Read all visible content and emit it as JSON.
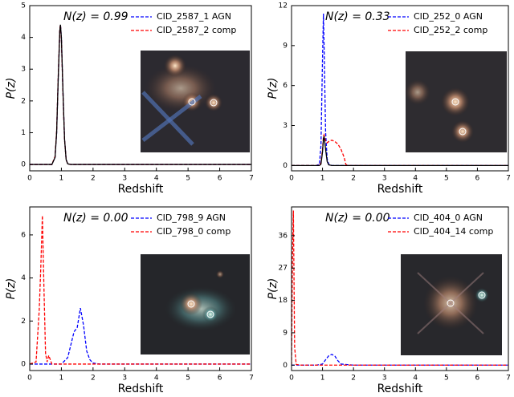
{
  "chart_data": [
    {
      "type": "line",
      "annotation": "N(z) = 0.99",
      "xlabel": "Redshift",
      "ylabel": "P(z)",
      "xlim": [
        0,
        7
      ],
      "xticks": [
        0,
        1,
        2,
        3,
        4,
        5,
        6,
        7
      ],
      "ylim": [
        -0.2,
        5
      ],
      "yticks": [
        0,
        1,
        2,
        3,
        4,
        5
      ],
      "x": [
        0,
        0.5,
        0.7,
        0.8,
        0.85,
        0.9,
        0.95,
        0.97,
        1.0,
        1.05,
        1.1,
        1.15,
        1.2,
        1.3,
        1.5,
        2,
        3,
        4,
        5,
        6,
        7
      ],
      "series": [
        {
          "name": "CID_2587_1 AGN",
          "color": "#0000ff",
          "dashed": true,
          "values": [
            0,
            0,
            0,
            0.23,
            1.0,
            2.7,
            4.2,
            4.4,
            4.0,
            2.3,
            0.8,
            0.16,
            0.02,
            0,
            0,
            0,
            0,
            0,
            0,
            0,
            0
          ]
        },
        {
          "name": "CID_2587_2 comp",
          "color": "#ff0000",
          "dashed": true,
          "values": [
            0,
            0,
            0,
            0.25,
            1.05,
            2.75,
            4.25,
            4.4,
            3.95,
            2.25,
            0.78,
            0.15,
            0.02,
            0,
            0,
            0,
            0,
            0,
            0,
            0,
            0
          ]
        },
        {
          "color": "#000000",
          "dashed": false,
          "values": [
            0,
            0,
            0,
            0.22,
            1.0,
            2.7,
            4.2,
            4.4,
            4.0,
            2.3,
            0.8,
            0.15,
            0.02,
            0,
            0,
            0,
            0,
            0,
            0,
            0,
            0
          ]
        }
      ]
    },
    {
      "type": "line",
      "annotation": "N(z) = 0.33",
      "xlabel": "Redshift",
      "ylabel": "P(z)",
      "xlim": [
        0,
        7
      ],
      "xticks": [
        0,
        1,
        2,
        3,
        4,
        5,
        6,
        7
      ],
      "ylim": [
        -0.4,
        12
      ],
      "yticks": [
        0,
        3,
        6,
        9,
        12
      ],
      "x": [
        0,
        0.5,
        0.8,
        0.9,
        0.95,
        1.0,
        1.03,
        1.05,
        1.1,
        1.15,
        1.2,
        1.3,
        1.4,
        1.5,
        1.6,
        1.7,
        1.75,
        1.8,
        2,
        3,
        4,
        5,
        6,
        7
      ],
      "series": [
        {
          "name": "CID_252_0 AGN",
          "color": "#0000ff",
          "dashed": true,
          "values": [
            0,
            0,
            0,
            0.1,
            1.5,
            8,
            11.4,
            9,
            2.5,
            0.5,
            0.1,
            0,
            0,
            0,
            0,
            0,
            0,
            0,
            0,
            0,
            0,
            0,
            0,
            0
          ]
        },
        {
          "name": "CID_252_2 comp",
          "color": "#ff0000",
          "dashed": true,
          "values": [
            0,
            0,
            0,
            0,
            0.2,
            1.2,
            2.2,
            2.3,
            1.8,
            1.7,
            1.8,
            1.9,
            1.8,
            1.6,
            1.2,
            0.6,
            0.1,
            0,
            0,
            0,
            0,
            0,
            0,
            0
          ]
        },
        {
          "color": "#000000",
          "dashed": false,
          "values": [
            0,
            0,
            0,
            0,
            0.1,
            1,
            2,
            2.2,
            1.2,
            0.3,
            0.05,
            0,
            0,
            0,
            0,
            0,
            0,
            0,
            0,
            0,
            0,
            0,
            0,
            0
          ]
        }
      ]
    },
    {
      "type": "line",
      "annotation": "N(z) = 0.00",
      "xlabel": "Redshift",
      "ylabel": "P(z)",
      "xlim": [
        0,
        7
      ],
      "xticks": [
        0,
        1,
        2,
        3,
        4,
        5,
        6,
        7
      ],
      "ylim": [
        -0.3,
        7.3
      ],
      "yticks": [
        0,
        2,
        4,
        6
      ],
      "x": [
        0,
        0.2,
        0.3,
        0.35,
        0.4,
        0.45,
        0.5,
        0.55,
        0.6,
        0.65,
        0.7,
        0.8,
        1.0,
        1.2,
        1.3,
        1.4,
        1.5,
        1.6,
        1.7,
        1.8,
        1.9,
        2.0,
        2.2,
        3,
        4,
        5,
        6,
        7
      ],
      "series": [
        {
          "name": "CID_798_9 AGN",
          "color": "#0000ff",
          "dashed": true,
          "values": [
            0,
            0,
            0,
            0,
            0,
            0,
            0,
            0,
            0,
            0,
            0,
            0,
            0,
            0.3,
            0.9,
            1.5,
            1.7,
            2.6,
            1.8,
            0.6,
            0.2,
            0.05,
            0,
            0,
            0,
            0,
            0,
            0
          ]
        },
        {
          "name": "CID_798_0 comp",
          "color": "#ff0000",
          "dashed": true,
          "values": [
            0,
            0.1,
            2.5,
            4.5,
            6.9,
            3.5,
            0.5,
            0.1,
            0.4,
            0.2,
            0,
            0,
            0,
            0,
            0,
            0,
            0,
            0,
            0,
            0,
            0,
            0,
            0,
            0,
            0,
            0,
            0,
            0
          ]
        }
      ]
    },
    {
      "type": "line",
      "annotation": "N(z) = 0.00",
      "xlabel": "Redshift",
      "ylabel": "P(z)",
      "xlim": [
        0,
        7
      ],
      "xticks": [
        0,
        1,
        2,
        3,
        4,
        5,
        6,
        7
      ],
      "ylim": [
        -1.5,
        44
      ],
      "yticks": [
        0,
        9,
        18,
        27,
        36
      ],
      "x": [
        0,
        0.03,
        0.06,
        0.1,
        0.15,
        0.3,
        0.8,
        1.0,
        1.1,
        1.2,
        1.3,
        1.4,
        1.5,
        1.6,
        2,
        3,
        4,
        5,
        6,
        7
      ],
      "series": [
        {
          "name": "CID_404_0 AGN",
          "color": "#0000ff",
          "dashed": true,
          "values": [
            0,
            0,
            0,
            0,
            0,
            0,
            0,
            0.3,
            1.5,
            2.6,
            3.0,
            2.5,
            1.2,
            0.3,
            0,
            0,
            0,
            0,
            0,
            0
          ]
        },
        {
          "name": "CID_404_14 comp",
          "color": "#ff0000",
          "dashed": true,
          "values": [
            0,
            30,
            43,
            5,
            0.2,
            0,
            0,
            0,
            0,
            0,
            0,
            0,
            0,
            0,
            0,
            0,
            0,
            0,
            0,
            0
          ]
        }
      ]
    }
  ]
}
